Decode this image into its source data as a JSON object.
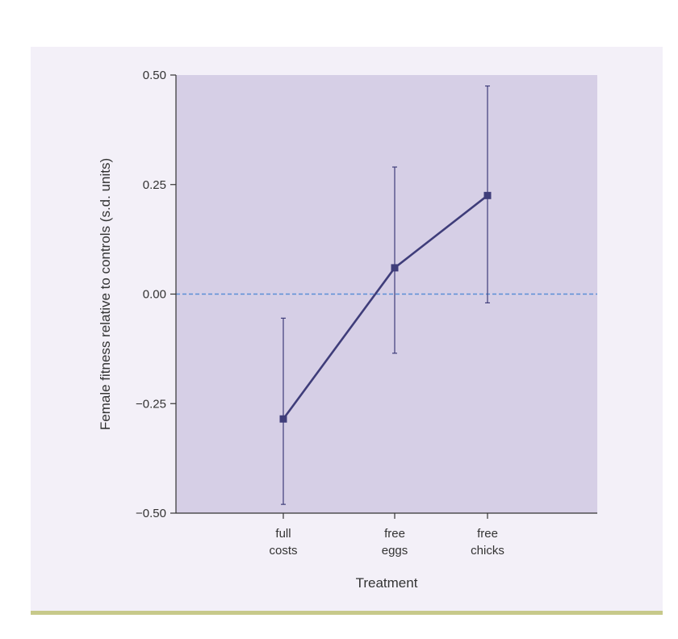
{
  "chart_data": {
    "type": "line",
    "title": "",
    "xlabel": "Treatment",
    "ylabel": "Female fitness relative to controls (s.d. units)",
    "ylim": [
      -0.5,
      0.5
    ],
    "yticks": [
      {
        "value": 0.5,
        "label": "0.50"
      },
      {
        "value": 0.25,
        "label": "0.25"
      },
      {
        "value": 0.0,
        "label": "0.00"
      },
      {
        "value": -0.25,
        "label": "−0.25"
      },
      {
        "value": -0.5,
        "label": "−0.50"
      }
    ],
    "categories": [
      {
        "lines": [
          "full",
          "costs"
        ]
      },
      {
        "lines": [
          "free",
          "eggs"
        ]
      },
      {
        "lines": [
          "free",
          "chicks"
        ]
      }
    ],
    "values": [
      -0.285,
      0.06,
      0.225
    ],
    "error_low": [
      -0.48,
      -0.135,
      -0.02
    ],
    "error_high": [
      -0.055,
      0.29,
      0.475
    ],
    "reference_line": 0.0,
    "grid": false,
    "legend": "none",
    "colors": {
      "plot_background": "#d6cfe6",
      "page_background": "#f3f0f8",
      "series": "#3f3d7a",
      "reference_line": "#5b8fd6",
      "axis": "#333333",
      "bottom_rule": "#c7c98a"
    }
  }
}
